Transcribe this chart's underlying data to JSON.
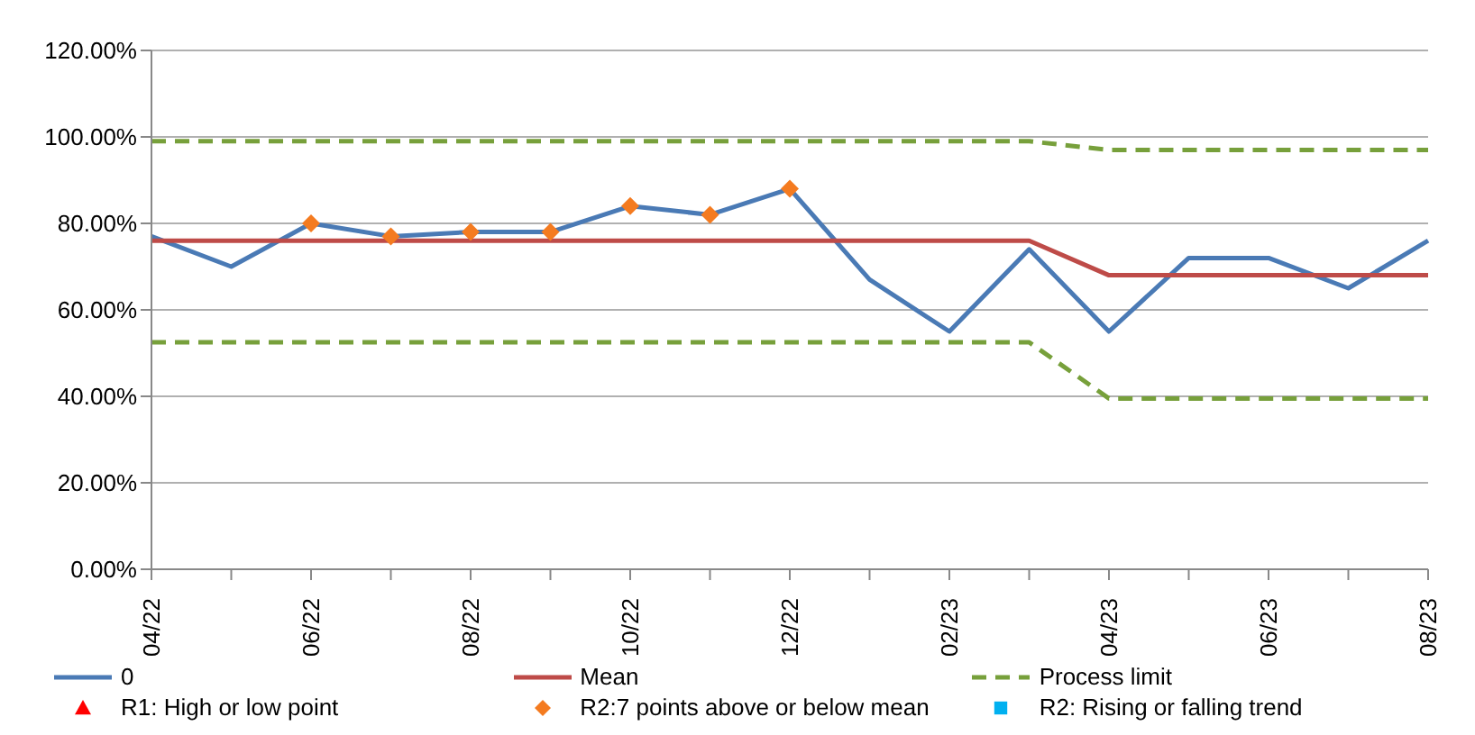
{
  "chart_data": {
    "type": "line",
    "categories": [
      "04/22",
      null,
      "06/22",
      null,
      "08/22",
      null,
      "10/22",
      null,
      "12/22",
      null,
      "02/23",
      null,
      "04/23",
      null,
      "06/23",
      null,
      "08/23"
    ],
    "series": [
      {
        "name": "0",
        "color": "#4a7ab5",
        "marker": "none",
        "values": [
          77,
          70,
          80,
          77,
          78,
          78,
          84,
          82,
          88,
          67,
          55,
          74,
          55,
          72,
          72,
          65,
          76
        ]
      },
      {
        "name": "Mean",
        "color": "#be4b48",
        "marker": "none",
        "values": [
          76,
          76,
          76,
          76,
          76,
          76,
          76,
          76,
          76,
          76,
          76,
          76,
          68,
          68,
          68,
          68,
          68
        ]
      },
      {
        "name": "Process limit",
        "color": "#77a03b",
        "marker": "none",
        "line_style": "dashed",
        "values": [
          99,
          99,
          99,
          99,
          99,
          99,
          99,
          99,
          99,
          99,
          99,
          99,
          97,
          97,
          97,
          97,
          97
        ]
      },
      {
        "color": "#77a03b",
        "marker": "none",
        "line_style": "dashed",
        "values": [
          52.5,
          52.5,
          52.5,
          52.5,
          52.5,
          52.5,
          52.5,
          52.5,
          52.5,
          52.5,
          52.5,
          52.5,
          39.5,
          39.5,
          39.5,
          39.5,
          39.5
        ]
      },
      {
        "name": "R1: High or low point",
        "type": "scatter",
        "color": "#ff0000",
        "marker": "triangle",
        "values": [
          null,
          null,
          null,
          null,
          null,
          null,
          null,
          null,
          null,
          null,
          null,
          null,
          null,
          null,
          null,
          null,
          null
        ]
      },
      {
        "name": "R2:7 points above or below mean",
        "type": "scatter",
        "color": "#f47b20",
        "marker": "diamond",
        "values": [
          null,
          null,
          80,
          77,
          78,
          78,
          84,
          82,
          88,
          null,
          null,
          null,
          null,
          null,
          null,
          null,
          null
        ]
      },
      {
        "name": "R2: Rising or falling trend",
        "type": "scatter",
        "color": "#00b0f0",
        "marker": "square",
        "values": [
          null,
          null,
          null,
          null,
          null,
          null,
          null,
          null,
          null,
          null,
          null,
          null,
          null,
          null,
          null,
          null,
          null
        ]
      }
    ],
    "ylim": [
      0,
      120
    ],
    "yticks": [
      {
        "value": 0,
        "label": "0.00%"
      },
      {
        "value": 20,
        "label": "20.00%"
      },
      {
        "value": 40,
        "label": "40.00%"
      },
      {
        "value": 60,
        "label": "60.00%"
      },
      {
        "value": 80,
        "label": "80.00%"
      },
      {
        "value": 100,
        "label": "100.00%"
      },
      {
        "value": 120,
        "label": "120.00%"
      }
    ],
    "grid": "y",
    "legend": "bottom"
  }
}
